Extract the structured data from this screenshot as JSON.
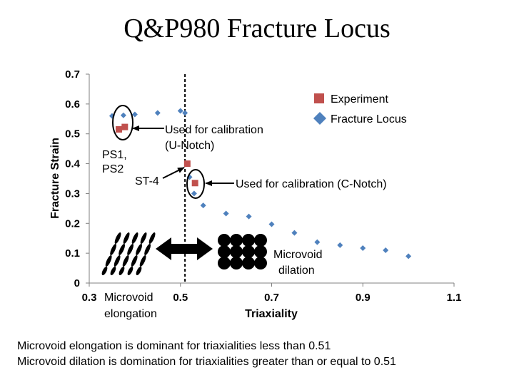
{
  "slide": {
    "title": "Q&P980 Fracture Locus",
    "notes": [
      "Microvoid elongation is dominant for triaxialities less than 0.51",
      "Microvoid dilation is domination for triaxialities greater than or equal to 0.51"
    ]
  },
  "chart_data": {
    "type": "scatter",
    "xlabel": "Triaxiality",
    "ylabel": "Fracture Strain",
    "xlim": [
      0.3,
      1.1
    ],
    "ylim": [
      0,
      0.7
    ],
    "xticks": [
      "0.3",
      "0.5",
      "0.7",
      "0.9",
      "1.1"
    ],
    "yticks": [
      "0",
      "0.1",
      "0.2",
      "0.3",
      "0.4",
      "0.5",
      "0.6",
      "0.7"
    ],
    "grid": false,
    "legend_position": "top-right",
    "series": [
      {
        "name": "Experiment",
        "marker": "square",
        "color": "#c0504d",
        "points": [
          {
            "x": 0.365,
            "y": 0.515
          },
          {
            "x": 0.378,
            "y": 0.523
          },
          {
            "x": 0.515,
            "y": 0.4
          },
          {
            "x": 0.532,
            "y": 0.335
          }
        ]
      },
      {
        "name": "Fracture Locus",
        "marker": "diamond",
        "color": "#4f81bd",
        "points": [
          {
            "x": 0.35,
            "y": 0.56
          },
          {
            "x": 0.375,
            "y": 0.562
          },
          {
            "x": 0.4,
            "y": 0.565
          },
          {
            "x": 0.45,
            "y": 0.57
          },
          {
            "x": 0.5,
            "y": 0.577
          },
          {
            "x": 0.51,
            "y": 0.57
          },
          {
            "x": 0.52,
            "y": 0.355
          },
          {
            "x": 0.53,
            "y": 0.3
          },
          {
            "x": 0.55,
            "y": 0.26
          },
          {
            "x": 0.6,
            "y": 0.233
          },
          {
            "x": 0.65,
            "y": 0.223
          },
          {
            "x": 0.7,
            "y": 0.197
          },
          {
            "x": 0.75,
            "y": 0.168
          },
          {
            "x": 0.8,
            "y": 0.137
          },
          {
            "x": 0.85,
            "y": 0.127
          },
          {
            "x": 0.9,
            "y": 0.117
          },
          {
            "x": 0.95,
            "y": 0.11
          },
          {
            "x": 1.0,
            "y": 0.09
          }
        ]
      }
    ],
    "threshold_x": 0.51,
    "annotations": {
      "calib_u": [
        "Used for calibration",
        "(U-Notch)"
      ],
      "calib_c": "Used for calibration (C-Notch)",
      "ps": [
        "PS1,",
        "PS2"
      ],
      "st4": "ST-4",
      "elongation": [
        "Microvoid",
        "elongation"
      ],
      "dilation": [
        "Microvoid",
        "dilation"
      ]
    }
  }
}
